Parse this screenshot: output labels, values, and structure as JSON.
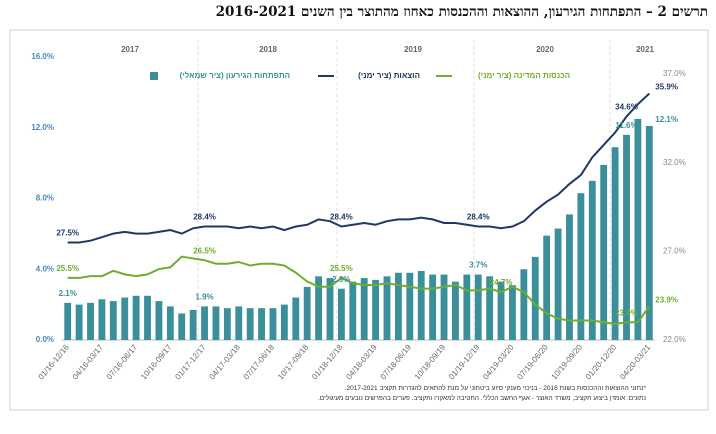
{
  "chart_data": {
    "type": "bar_line",
    "title": "תרשים 2 – התפתחות הגירעון, ההוצאות וההכנסות כאחוז מהתוצר בין השנים 2016-2021",
    "year_labels": [
      "2017",
      "2018",
      "2019",
      "2020",
      "2021"
    ],
    "footnotes": [
      "*נתוני ההוצאות וההכנסות בשנת 2016 - בניכוי מענקי סיוע ביטחוני על מנת להתאים להגדרות תקציב 2017-2021.",
      "נתונים: אומדן ביצוע תקציב, משרד האוצר - אגף החשב הכללי. החטיבה למאקרו ותקציב. פערים בהפרשים נובעים מעיגולים."
    ],
    "categories": [
      "01/16-12/16",
      null,
      null,
      "04/16-03/17",
      null,
      null,
      "07/16-06/17",
      null,
      null,
      "10/16-09/17",
      null,
      null,
      "01/17-12/17",
      null,
      null,
      "04/17-03/18",
      null,
      null,
      "07/17-06/18",
      null,
      null,
      "10/17-09/18",
      null,
      null,
      "01/18-12/18",
      null,
      null,
      "04/18-03/19",
      null,
      null,
      "07/18-06/19",
      null,
      null,
      "10/18-09/19",
      null,
      null,
      "01/19-12/19",
      null,
      null,
      "04/19-03/20",
      null,
      null,
      "07/19-06/20",
      null,
      null,
      "10/19-09/20",
      null,
      null,
      "01/20-12/20",
      null,
      null,
      "04/20-03/21"
    ],
    "ylim": [
      0,
      16
    ],
    "yticks": [
      {
        "value": 0,
        "label": "0.0%"
      },
      {
        "value": 4,
        "label": "4.0%"
      },
      {
        "value": 8,
        "label": "8.0%"
      },
      {
        "value": 12,
        "label": "12.0%"
      },
      {
        "value": 16,
        "label": "16.0%"
      }
    ],
    "y2lim": [
      22,
      37
    ],
    "y2ticks": [
      {
        "value": 22,
        "label": "22.0%"
      },
      {
        "value": 27,
        "label": "27.0%"
      },
      {
        "value": 32,
        "label": "32.0%"
      },
      {
        "value": 37,
        "label": "37.0%"
      }
    ],
    "series": [
      {
        "name": "התפתחות הגירעון (ציר שמאלי)",
        "type": "bar",
        "axis": "y",
        "color": "#3a8f9a",
        "values": [
          2.1,
          2.0,
          2.1,
          2.3,
          2.2,
          2.4,
          2.5,
          2.5,
          2.2,
          1.9,
          1.5,
          1.7,
          1.9,
          1.9,
          1.8,
          1.9,
          1.8,
          1.8,
          1.8,
          2.0,
          2.4,
          3.0,
          3.6,
          3.5,
          2.9,
          3.3,
          3.5,
          3.4,
          3.6,
          3.8,
          3.8,
          3.9,
          3.7,
          3.7,
          3.3,
          3.7,
          3.7,
          3.6,
          3.3,
          3.1,
          4.0,
          4.7,
          5.9,
          6.3,
          7.1,
          8.3,
          9.0,
          9.9,
          10.9,
          11.6,
          12.5,
          12.1
        ],
        "value_labels": [
          "2.1%",
          null,
          null,
          null,
          null,
          null,
          null,
          null,
          null,
          null,
          null,
          null,
          "1.9%",
          null,
          null,
          null,
          null,
          null,
          null,
          null,
          null,
          null,
          null,
          null,
          "2.9%",
          null,
          null,
          null,
          null,
          null,
          null,
          null,
          null,
          null,
          null,
          null,
          "3.7%",
          null,
          null,
          null,
          null,
          null,
          null,
          null,
          null,
          null,
          null,
          null,
          null,
          "11.6%",
          null,
          "12.1%"
        ]
      },
      {
        "name": "הוצאות (ציר ימני)",
        "type": "line",
        "axis": "y2",
        "color": "#1f3864",
        "values": [
          27.5,
          27.5,
          27.6,
          27.8,
          28.0,
          28.1,
          28.0,
          28.0,
          28.1,
          28.2,
          28.0,
          28.3,
          28.4,
          28.4,
          28.4,
          28.3,
          28.4,
          28.3,
          28.4,
          28.2,
          28.4,
          28.5,
          28.8,
          28.7,
          28.4,
          28.5,
          28.6,
          28.5,
          28.7,
          28.8,
          28.8,
          28.9,
          28.8,
          28.6,
          28.6,
          28.5,
          28.4,
          28.4,
          28.3,
          28.4,
          28.7,
          29.3,
          29.8,
          30.2,
          30.8,
          31.3,
          32.3,
          33.0,
          33.7,
          34.6,
          35.3,
          35.9
        ],
        "value_labels": [
          "27.5%",
          null,
          null,
          null,
          null,
          null,
          null,
          null,
          null,
          null,
          null,
          null,
          "28.4%",
          null,
          null,
          null,
          null,
          null,
          null,
          null,
          null,
          null,
          null,
          null,
          "28.4%",
          null,
          null,
          null,
          null,
          null,
          null,
          null,
          null,
          null,
          null,
          null,
          "28.4%",
          null,
          null,
          null,
          null,
          null,
          null,
          null,
          null,
          null,
          null,
          null,
          null,
          "34.6%",
          null,
          "35.9%"
        ]
      },
      {
        "name": "הכנסות המדינה (ציר ימני)",
        "type": "line",
        "axis": "y2",
        "color": "#70ad2f",
        "values": [
          25.5,
          25.5,
          25.6,
          25.6,
          25.9,
          25.7,
          25.6,
          25.7,
          26.0,
          26.1,
          26.7,
          26.6,
          26.5,
          26.3,
          26.3,
          26.4,
          26.2,
          26.3,
          26.3,
          26.2,
          25.8,
          25.3,
          25.0,
          25.0,
          25.5,
          25.2,
          25.1,
          25.1,
          25.2,
          25.1,
          25.0,
          24.9,
          24.9,
          25.0,
          25.1,
          24.8,
          24.8,
          24.9,
          24.7,
          25.0,
          24.7,
          24.0,
          23.5,
          23.2,
          23.1,
          23.1,
          23.1,
          23.0,
          22.9,
          23.0,
          23.0,
          23.9
        ],
        "value_labels": [
          "25.5%",
          null,
          null,
          null,
          null,
          null,
          null,
          null,
          null,
          null,
          null,
          null,
          "26.5%",
          null,
          null,
          null,
          null,
          null,
          null,
          null,
          null,
          null,
          null,
          null,
          "25.5%",
          null,
          null,
          null,
          null,
          null,
          null,
          null,
          null,
          null,
          null,
          null,
          null,
          null,
          "24.7%",
          null,
          null,
          null,
          null,
          null,
          null,
          null,
          null,
          null,
          null,
          "23.0%",
          null,
          "23.9%"
        ]
      }
    ]
  }
}
